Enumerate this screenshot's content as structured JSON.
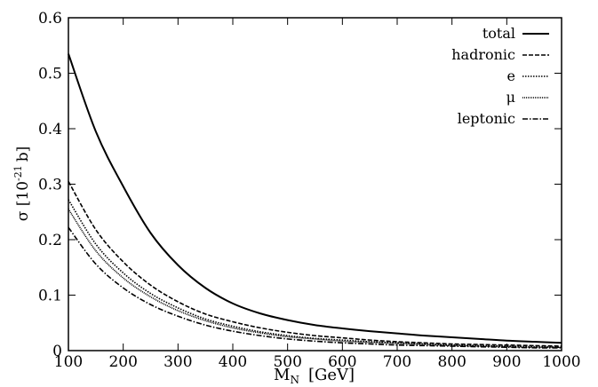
{
  "chart_data": {
    "type": "line",
    "xlabel": "M",
    "xlabel_sub": "N",
    "xlabel_unit": "[GeV]",
    "ylabel": "σ [10",
    "ylabel_sup": "-21",
    "ylabel_unit": "b]",
    "xlim": [
      100,
      1000
    ],
    "ylim": [
      0,
      0.6
    ],
    "x_ticks": [
      100,
      200,
      300,
      400,
      500,
      600,
      700,
      800,
      900,
      1000
    ],
    "y_ticks": [
      0,
      0.1,
      0.2,
      0.3,
      0.4,
      0.5,
      0.6
    ],
    "y_tick_labels": [
      "0",
      "0.1",
      "0.2",
      "0.3",
      "0.4",
      "0.5",
      "0.6"
    ],
    "legend_position": "top-right",
    "grid": false,
    "x": [
      100,
      150,
      200,
      250,
      300,
      350,
      400,
      450,
      500,
      550,
      600,
      650,
      700,
      750,
      800,
      850,
      900,
      950,
      1000
    ],
    "series": [
      {
        "name": "total",
        "dash": "solid",
        "values": [
          0.535,
          0.395,
          0.296,
          0.212,
          0.154,
          0.113,
          0.085,
          0.067,
          0.055,
          0.046,
          0.04,
          0.035,
          0.031,
          0.027,
          0.024,
          0.021,
          0.018,
          0.016,
          0.014
        ]
      },
      {
        "name": "hadronic",
        "dash": "dashed",
        "values": [
          0.305,
          0.218,
          0.16,
          0.118,
          0.088,
          0.066,
          0.052,
          0.041,
          0.033,
          0.027,
          0.023,
          0.019,
          0.016,
          0.014,
          0.012,
          0.011,
          0.01,
          0.009,
          0.008
        ]
      },
      {
        "name": "e",
        "dash": "dotted",
        "values": [
          0.272,
          0.192,
          0.14,
          0.103,
          0.077,
          0.057,
          0.044,
          0.034,
          0.027,
          0.022,
          0.019,
          0.016,
          0.014,
          0.012,
          0.01,
          0.009,
          0.008,
          0.007,
          0.006
        ]
      },
      {
        "name": "μ",
        "dash": "fine-dotted",
        "values": [
          0.255,
          0.18,
          0.131,
          0.097,
          0.072,
          0.054,
          0.041,
          0.032,
          0.025,
          0.021,
          0.017,
          0.015,
          0.013,
          0.011,
          0.009,
          0.008,
          0.007,
          0.006,
          0.006
        ]
      },
      {
        "name": "leptonic",
        "dash": "dash-dot",
        "values": [
          0.222,
          0.156,
          0.113,
          0.083,
          0.062,
          0.046,
          0.035,
          0.027,
          0.021,
          0.017,
          0.014,
          0.012,
          0.01,
          0.009,
          0.008,
          0.007,
          0.006,
          0.005,
          0.005
        ]
      }
    ]
  }
}
